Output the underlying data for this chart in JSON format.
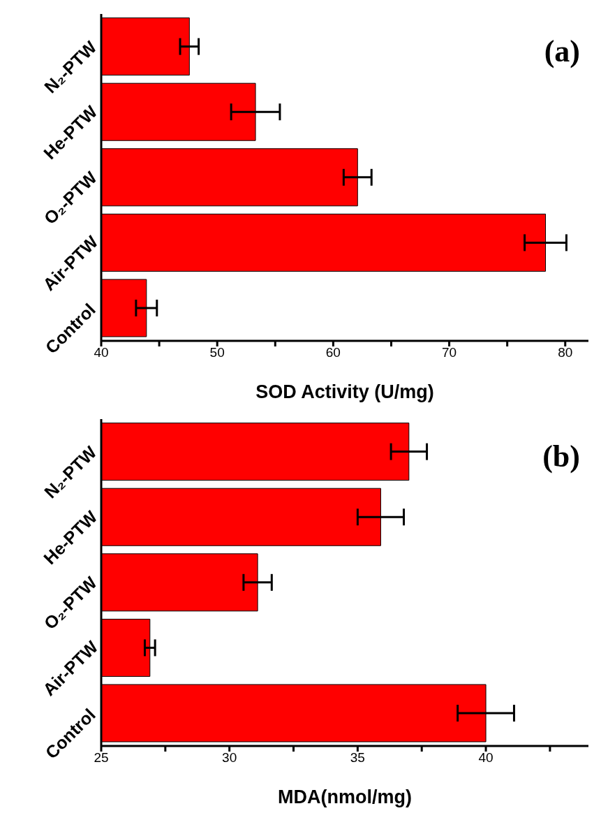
{
  "chart_data": [
    {
      "type": "bar",
      "orientation": "horizontal",
      "categories": [
        "N₂-PTW",
        "He-PTW",
        "O₂-PTW",
        "Air-PTW",
        "Control"
      ],
      "color": "#ff0000",
      "values": [
        47.6,
        53.3,
        62.1,
        78.3,
        43.9
      ],
      "errors": [
        0.8,
        2.1,
        1.2,
        1.8,
        0.9
      ],
      "xlabel": "SOD Activity (U/mg)",
      "xlim": [
        40,
        82
      ],
      "xticks": [
        40,
        {
          "value": 45,
          "label": null
        },
        50,
        {
          "value": 55,
          "label": null
        },
        60,
        {
          "value": 65,
          "label": null
        },
        70,
        {
          "value": 75,
          "label": null
        },
        80
      ],
      "annotations": [
        "(a)"
      ]
    },
    {
      "type": "bar",
      "orientation": "horizontal",
      "categories": [
        "N₂-PTW",
        "He-PTW",
        "O₂-PTW",
        "Air-PTW",
        "Control"
      ],
      "color": "#ff0000",
      "values": [
        37.0,
        35.9,
        31.1,
        26.9,
        40.0
      ],
      "errors": [
        0.7,
        0.9,
        0.55,
        0.2,
        1.1
      ],
      "xlabel": "MDA(nmol/mg)",
      "xlim": [
        25,
        44
      ],
      "xticks": [
        25,
        {
          "value": 27.5,
          "label": null
        },
        30,
        {
          "value": 32.5,
          "label": null
        },
        35,
        {
          "value": 37.5,
          "label": null
        },
        40,
        {
          "value": 42.5,
          "label": null
        }
      ],
      "annotations": [
        "(b)"
      ]
    }
  ]
}
